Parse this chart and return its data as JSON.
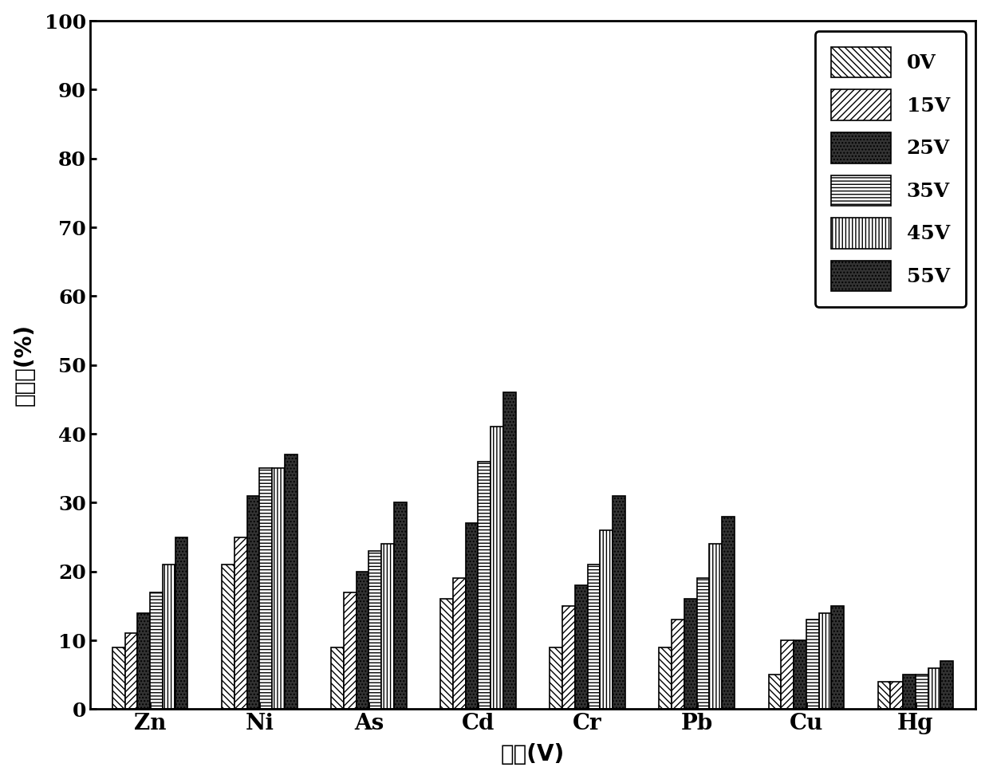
{
  "categories": [
    "Zn",
    "Ni",
    "As",
    "Cd",
    "Cr",
    "Pb",
    "Cu",
    "Hg"
  ],
  "voltages": [
    "0V",
    "15V",
    "25V",
    "35V",
    "45V",
    "55V"
  ],
  "values": {
    "Zn": [
      9,
      11,
      14,
      17,
      21,
      25
    ],
    "Ni": [
      21,
      25,
      31,
      35,
      35,
      37
    ],
    "As": [
      9,
      17,
      20,
      23,
      24,
      30
    ],
    "Cd": [
      16,
      19,
      27,
      36,
      41,
      46
    ],
    "Cr": [
      9,
      15,
      18,
      21,
      26,
      31
    ],
    "Pb": [
      9,
      13,
      16,
      19,
      24,
      28
    ],
    "Cu": [
      5,
      10,
      10,
      13,
      14,
      15
    ],
    "Hg": [
      4,
      4,
      5,
      5,
      6,
      7
    ]
  },
  "ylim": [
    0,
    100
  ],
  "yticks": [
    0,
    10,
    20,
    30,
    40,
    50,
    60,
    70,
    80,
    90,
    100
  ],
  "ylabel": "去除率(%)",
  "xlabel": "电压(V)",
  "face_colors": [
    "white",
    "white",
    "#333333",
    "white",
    "white",
    "#333333"
  ],
  "hatch_styles": [
    "\\\\\\\\",
    "////",
    "....",
    "----",
    "||||",
    "...."
  ],
  "edge_colors": [
    "black",
    "black",
    "black",
    "black",
    "black",
    "black"
  ],
  "bar_width": 0.115,
  "figsize": [
    12.4,
    9.77
  ],
  "dpi": 100
}
